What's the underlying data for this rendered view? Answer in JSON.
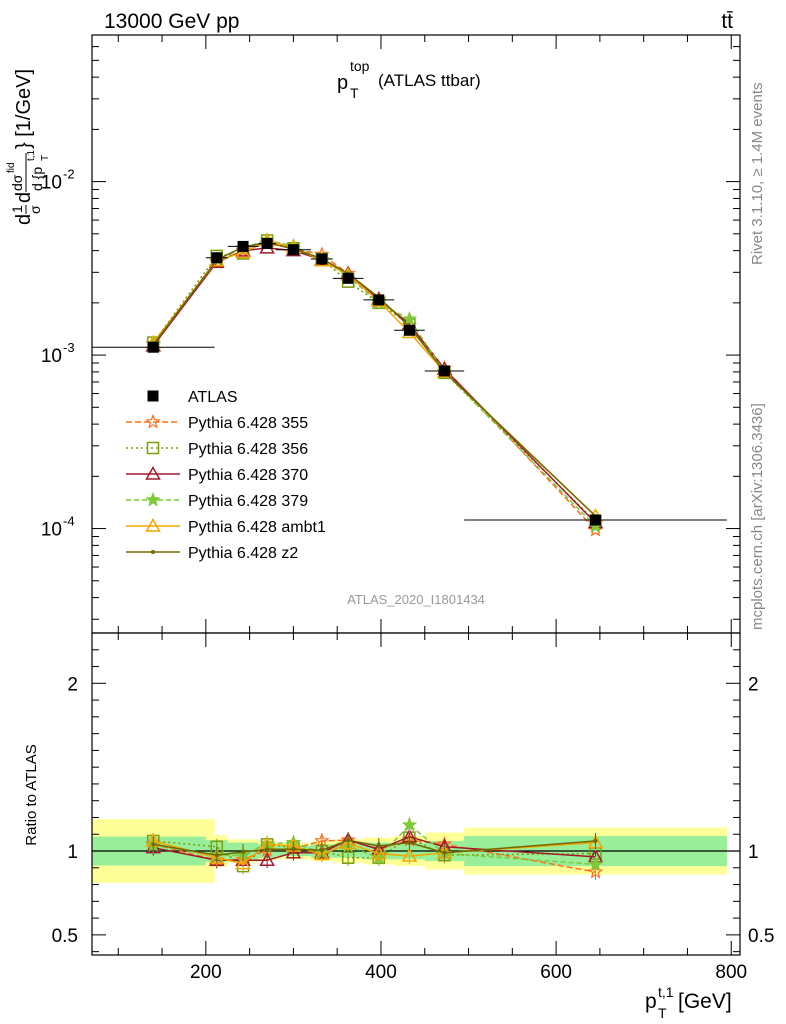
{
  "header": {
    "left": "13000 GeV pp",
    "right": "tt̄"
  },
  "side_labels": {
    "rivet": "Rivet 3.1.10, ≥ 1.4M events",
    "mcplots": "mcplots.cern.ch [arXiv:1306.3436]"
  },
  "analysis_id": "ATLAS_2020_I1801434",
  "chart_data": [
    {
      "type": "line",
      "panel": "main",
      "title": "p_T^top (ATLAS ttbar)",
      "title_main": "p",
      "title_sub": "T",
      "title_sup": "top",
      "title_rest": " (ATLAS ttbar)",
      "ylabel": "d1/σ dσ^fid/d {p_T^t,1} [1/GeV]",
      "ylabel_unit": "} [1/GeV]",
      "yscale": "log",
      "ylim": [
        2.5e-05,
        0.07
      ],
      "xlim": [
        70,
        810
      ],
      "yticks": [
        {
          "value": 0.01,
          "base": "10",
          "exp": "-2"
        },
        {
          "value": 0.001,
          "base": "10",
          "exp": "-3"
        },
        {
          "value": 0.0001,
          "base": "10",
          "exp": "-4"
        }
      ],
      "legend_position": "lower-left",
      "x": [
        140,
        212.5,
        242.5,
        270,
        300,
        332.5,
        362.5,
        397.5,
        432.5,
        472.5,
        645
      ],
      "x_err": [
        [
          70,
          210
        ],
        [
          200,
          225
        ],
        [
          225,
          260
        ],
        [
          260,
          280
        ],
        [
          280,
          320
        ],
        [
          320,
          345
        ],
        [
          345,
          380
        ],
        [
          380,
          415
        ],
        [
          415,
          450
        ],
        [
          450,
          495
        ],
        [
          495,
          795
        ]
      ],
      "series": [
        {
          "name": "ATLAS",
          "color": "#000000",
          "marker": "filled-square",
          "dash": "none",
          "values": [
            0.00111,
            0.00364,
            0.00423,
            0.0044,
            0.00405,
            0.00358,
            0.00277,
            0.00208,
            0.00139,
            0.00081,
            0.000112
          ]
        },
        {
          "name": "Pythia 6.428 355",
          "color": "#ff6e1a",
          "marker": "open-star",
          "dash": "6,3",
          "values": [
            0.00116,
            0.00344,
            0.00401,
            0.00442,
            0.0041,
            0.0038,
            0.00295,
            0.0021,
            0.00148,
            0.00084,
            9.8e-05
          ]
        },
        {
          "name": "Pythia 6.428 356",
          "color": "#7a9c0f",
          "marker": "open-square",
          "dash": "2,3",
          "values": [
            0.00118,
            0.00373,
            0.00385,
            0.00458,
            0.00413,
            0.00358,
            0.00265,
            0.002,
            0.0015,
            0.00079,
            0.00011
          ]
        },
        {
          "name": "Pythia 6.428 370",
          "color": "#a01a2c",
          "marker": "open-triangle",
          "dash": "none",
          "values": [
            0.00113,
            0.00343,
            0.00399,
            0.00415,
            0.004,
            0.00354,
            0.00295,
            0.0021,
            0.00151,
            0.00083,
            0.000108
          ]
        },
        {
          "name": "Pythia 6.428 379",
          "color": "#7ec83a",
          "marker": "filled-star",
          "dash": "5,3",
          "values": [
            0.00115,
            0.00355,
            0.00413,
            0.0046,
            0.00425,
            0.00355,
            0.00285,
            0.002,
            0.00161,
            0.0008,
            0.000103
          ]
        },
        {
          "name": "Pythia 6.428 ambt1",
          "color": "#f0a800",
          "marker": "open-triangle",
          "dash": "none",
          "values": [
            0.00118,
            0.0035,
            0.0039,
            0.00457,
            0.00418,
            0.0035,
            0.0029,
            0.00205,
            0.00135,
            0.0008,
            0.000118
          ]
        },
        {
          "name": "Pythia 6.428 z2",
          "color": "#6e6a00",
          "marker": "dot",
          "dash": "none",
          "values": [
            0.00115,
            0.00354,
            0.0042,
            0.00445,
            0.0041,
            0.0036,
            0.00295,
            0.00215,
            0.00146,
            0.0008,
            0.000118
          ]
        }
      ]
    },
    {
      "type": "line",
      "panel": "ratio",
      "ylabel": "Ratio to ATLAS",
      "xlabel": "p_T^t,1 [GeV]",
      "xlabel_main": "p",
      "xlabel_sub": "T",
      "xlabel_sup": "t,1",
      "xlabel_rest": " [GeV]",
      "ylim": [
        0.38,
        2.3
      ],
      "xlim": [
        70,
        810
      ],
      "xticks": [
        200,
        400,
        600,
        800
      ],
      "yticks": [
        0.5,
        1,
        2
      ],
      "band_inner": [
        0.086,
        0.065,
        0.05,
        0.04,
        0.03,
        0.04,
        0.04,
        0.05,
        0.05,
        0.06,
        0.09
      ],
      "band_outer": [
        0.19,
        0.095,
        0.07,
        0.055,
        0.05,
        0.06,
        0.07,
        0.08,
        0.09,
        0.11,
        0.14
      ],
      "series": [
        {
          "name": "Pythia 6.428 355",
          "values": [
            1.04,
            0.945,
            0.95,
            1.005,
            1.015,
            1.06,
            1.065,
            1.01,
            1.065,
            1.04,
            0.875
          ]
        },
        {
          "name": "Pythia 6.428 356",
          "values": [
            1.06,
            1.025,
            0.91,
            1.04,
            1.02,
            1.0,
            0.96,
            0.96,
            1.08,
            0.975,
            0.985
          ]
        },
        {
          "name": "Pythia 6.428 370",
          "values": [
            1.02,
            0.945,
            0.945,
            0.945,
            0.99,
            0.99,
            1.065,
            1.01,
            1.085,
            1.025,
            0.965
          ]
        },
        {
          "name": "Pythia 6.428 379",
          "values": [
            1.035,
            0.975,
            0.975,
            1.045,
            1.05,
            0.99,
            1.03,
            0.96,
            1.155,
            0.985,
            0.92
          ]
        },
        {
          "name": "Pythia 6.428 ambt1",
          "values": [
            1.06,
            0.96,
            0.925,
            1.04,
            1.03,
            0.98,
            1.045,
            0.985,
            0.97,
            0.99,
            1.05
          ]
        },
        {
          "name": "Pythia 6.428 z2",
          "values": [
            1.04,
            0.975,
            0.995,
            1.01,
            1.01,
            1.005,
            1.065,
            1.03,
            1.05,
            0.99,
            1.06
          ]
        }
      ]
    }
  ]
}
